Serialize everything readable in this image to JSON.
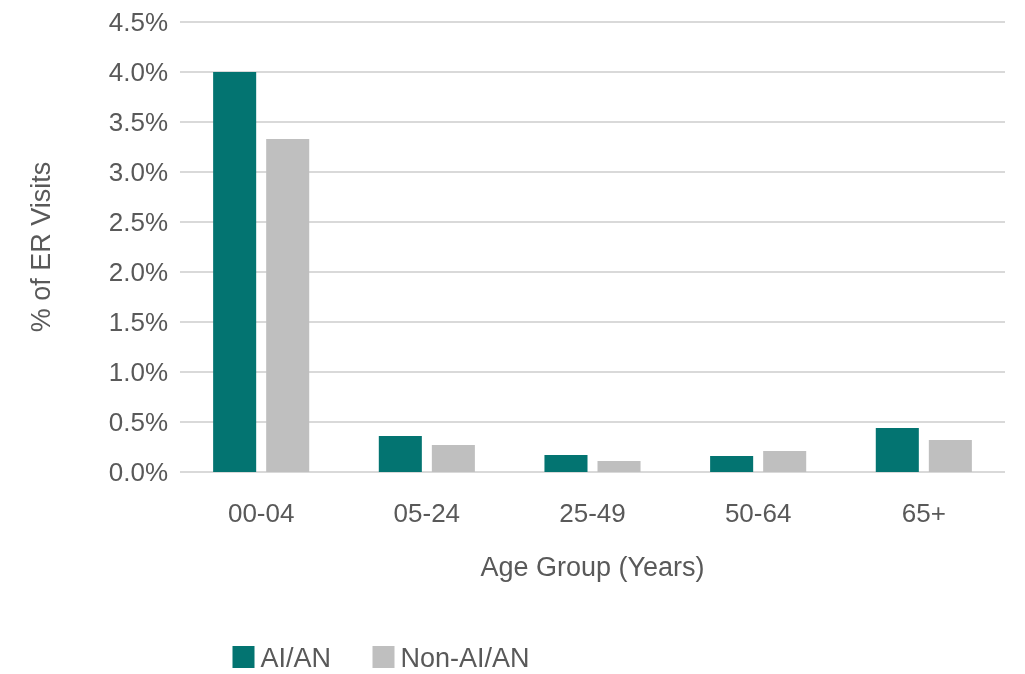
{
  "chart_data": {
    "type": "bar",
    "categories": [
      "00-04",
      "05-24",
      "25-49",
      "50-64",
      "65+"
    ],
    "xlabel": "Age Group (Years)",
    "ylabel": "% of ER Visits",
    "series": [
      {
        "name": "AI/AN",
        "color": "#037471",
        "values": [
          4.0,
          0.36,
          0.17,
          0.16,
          0.44
        ]
      },
      {
        "name": "Non-AI/AN",
        "color": "#bfbfbf",
        "values": [
          3.33,
          0.27,
          0.11,
          0.21,
          0.32
        ]
      }
    ],
    "ylim": [
      0,
      4.5
    ],
    "yticks": [
      {
        "value": 0,
        "label": "0.0%"
      },
      {
        "value": 0.5,
        "label": "0.5%"
      },
      {
        "value": 1,
        "label": "1.0%"
      },
      {
        "value": 1.5,
        "label": "1.5%"
      },
      {
        "value": 2,
        "label": "2.0%"
      },
      {
        "value": 2.5,
        "label": "2.5%"
      },
      {
        "value": 3,
        "label": "3.0%"
      },
      {
        "value": 3.5,
        "label": "3.5%"
      },
      {
        "value": 4,
        "label": "4.0%"
      },
      {
        "value": 4.5,
        "label": "4.5%"
      }
    ],
    "grid": "y",
    "legend": "bottom"
  }
}
